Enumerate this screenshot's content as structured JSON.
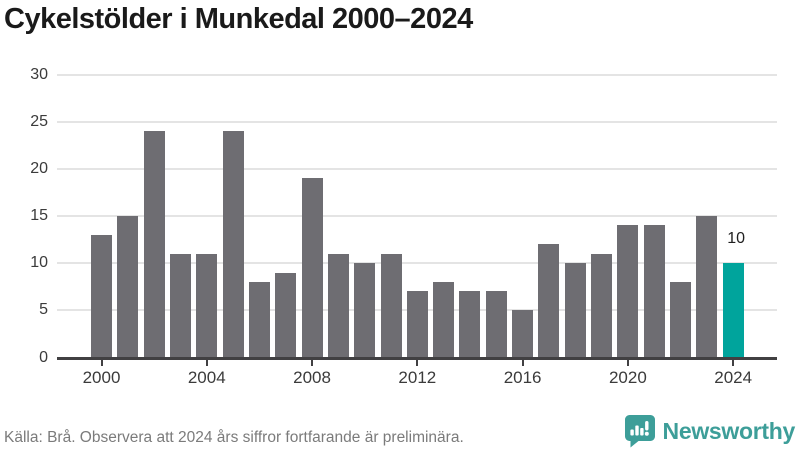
{
  "page": {
    "title": "Cykelstölder i Munkedal 2000–2024"
  },
  "chart_data": {
    "type": "bar",
    "title": "Cykelstölder i Munkedal 2000–2024",
    "categories": [
      2000,
      2001,
      2002,
      2003,
      2004,
      2005,
      2006,
      2007,
      2008,
      2009,
      2010,
      2011,
      2012,
      2013,
      2014,
      2015,
      2016,
      2017,
      2018,
      2019,
      2020,
      2021,
      2022,
      2023,
      2024
    ],
    "values": [
      13,
      15,
      24,
      11,
      11,
      24,
      8,
      9,
      19,
      11,
      10,
      11,
      7,
      8,
      7,
      7,
      5,
      12,
      10,
      11,
      14,
      14,
      8,
      15,
      10
    ],
    "xlabel": "",
    "ylabel": "",
    "ylim": [
      0,
      30
    ],
    "yticks": [
      0,
      5,
      10,
      15,
      20,
      25,
      30
    ],
    "xtick_years": [
      2000,
      2004,
      2008,
      2012,
      2016,
      2020,
      2024
    ],
    "grid": true,
    "legend": false,
    "bar_color": "#6e6d72",
    "highlight": {
      "index": 24,
      "color": "#00a49c",
      "label": "10"
    },
    "colors": {
      "axis": "#414042",
      "grid": "#e4e4e4",
      "tick_text": "#3b3b3b",
      "value_label": "#1f1f1f"
    }
  },
  "footer": {
    "source": "Källa: Brå. Observera att 2024 års siffror fortfarande är preliminära.",
    "brand": {
      "name": "Newsworthy",
      "color": "#3d9e99"
    }
  }
}
